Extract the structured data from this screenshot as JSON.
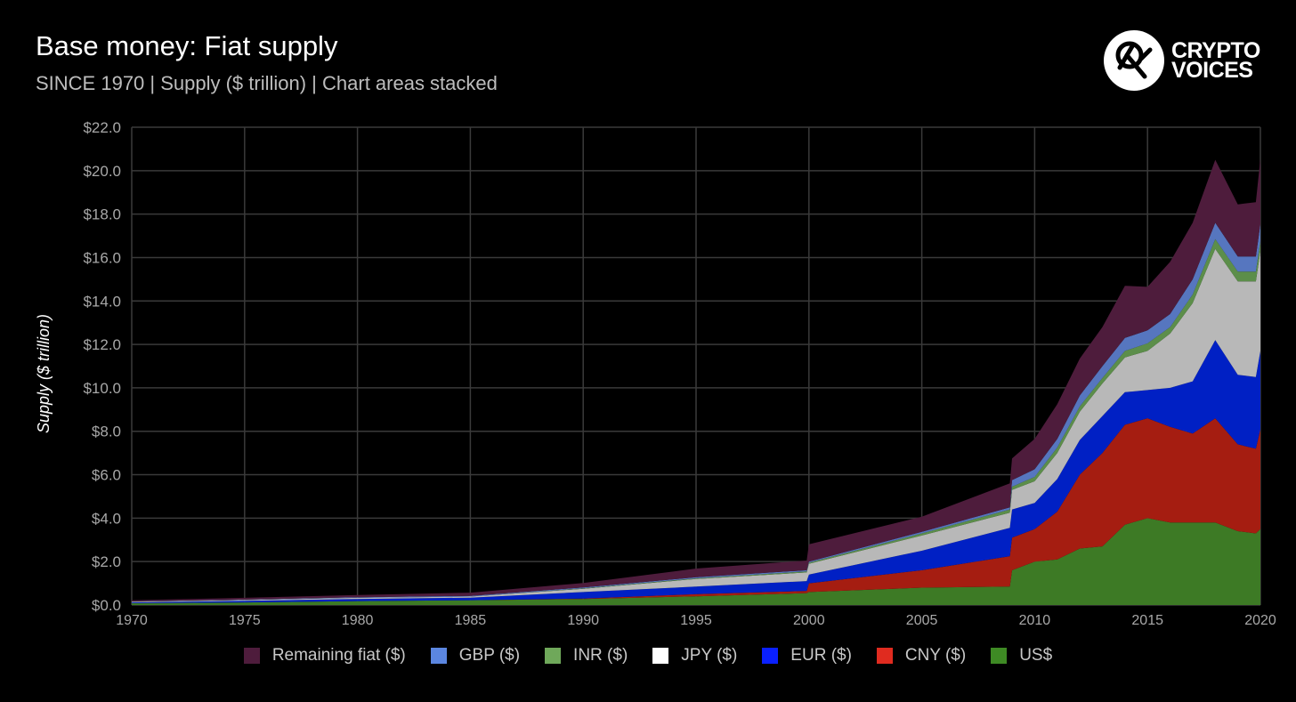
{
  "header": {
    "title": "Base money: Fiat supply",
    "subtitle": "SINCE 1970 | Supply ($ trillion) | Chart areas stacked"
  },
  "logo": {
    "line1": "CRYPTO",
    "line2": "VOICES",
    "icon": "crypto-voices-pickaxe-icon"
  },
  "chart_data": {
    "type": "area",
    "stacked": true,
    "title": "Base money: Fiat supply",
    "subtitle": "SINCE 1970 | Supply ($ trillion) | Chart areas stacked",
    "xlabel": "",
    "ylabel": "Supply ($ trillion)",
    "xlim": [
      1970,
      2020
    ],
    "ylim": [
      0,
      22
    ],
    "x_ticks": [
      "1970",
      "1975",
      "1980",
      "1985",
      "1990",
      "1995",
      "2000",
      "2005",
      "2010",
      "2015",
      "2020"
    ],
    "y_ticks": [
      "$0.0",
      "$2.0",
      "$4.0",
      "$6.0",
      "$8.0",
      "$10.0",
      "$12.0",
      "$14.0",
      "$16.0",
      "$18.0",
      "$20.0",
      "$22.0"
    ],
    "grid": true,
    "legend_position": "bottom",
    "x": [
      1970,
      1975,
      1980,
      1985,
      1990,
      1995,
      1999.9,
      2000,
      2005,
      2008.9,
      2009,
      2010,
      2011,
      2012,
      2013,
      2014,
      2015,
      2016,
      2017,
      2018,
      2019,
      2019.8,
      2020
    ],
    "series": [
      {
        "name": "US$",
        "color": "#3d7a25",
        "values": [
          0.08,
          0.12,
          0.18,
          0.22,
          0.28,
          0.4,
          0.55,
          0.6,
          0.8,
          0.85,
          1.6,
          2.0,
          2.1,
          2.6,
          2.7,
          3.7,
          4.0,
          3.8,
          3.8,
          3.8,
          3.4,
          3.3,
          3.5
        ]
      },
      {
        "name": "CNY ($)",
        "color": "#a51d11",
        "values": [
          0.0,
          0.0,
          0.0,
          0.0,
          0.02,
          0.1,
          0.1,
          0.4,
          0.8,
          1.4,
          1.5,
          1.5,
          2.2,
          3.4,
          4.3,
          4.6,
          4.6,
          4.4,
          4.1,
          4.8,
          4.0,
          3.9,
          4.6
        ]
      },
      {
        "name": "EUR ($)",
        "color": "#0020c4",
        "values": [
          0.04,
          0.07,
          0.1,
          0.12,
          0.3,
          0.35,
          0.45,
          0.4,
          0.9,
          1.3,
          1.3,
          1.2,
          1.5,
          1.6,
          1.7,
          1.5,
          1.3,
          1.8,
          2.4,
          3.6,
          3.2,
          3.3,
          3.6
        ]
      },
      {
        "name": "JPY ($)",
        "color": "#b8b8b8",
        "values": [
          0.03,
          0.04,
          0.05,
          0.05,
          0.15,
          0.35,
          0.4,
          0.5,
          0.7,
          0.7,
          0.9,
          1.0,
          1.2,
          1.3,
          1.5,
          1.6,
          1.8,
          2.5,
          3.6,
          4.2,
          4.3,
          4.4,
          4.6
        ]
      },
      {
        "name": "INR ($)",
        "color": "#5c8e4a",
        "values": [
          0.0,
          0.0,
          0.0,
          0.0,
          0.02,
          0.03,
          0.05,
          0.05,
          0.1,
          0.15,
          0.15,
          0.2,
          0.25,
          0.25,
          0.25,
          0.3,
          0.35,
          0.3,
          0.4,
          0.45,
          0.45,
          0.45,
          0.45
        ]
      },
      {
        "name": "GBP ($)",
        "color": "#5676bf",
        "values": [
          0.02,
          0.02,
          0.03,
          0.03,
          0.04,
          0.05,
          0.05,
          0.05,
          0.07,
          0.1,
          0.3,
          0.35,
          0.4,
          0.5,
          0.55,
          0.6,
          0.6,
          0.6,
          0.7,
          0.75,
          0.7,
          0.7,
          0.8
        ]
      },
      {
        "name": "Remaining fiat ($)",
        "color": "#4e1c3c",
        "values": [
          0.05,
          0.08,
          0.1,
          0.15,
          0.2,
          0.4,
          0.45,
          0.8,
          0.7,
          1.1,
          1.0,
          1.4,
          1.6,
          1.7,
          1.8,
          2.4,
          2.0,
          2.4,
          2.6,
          2.9,
          2.4,
          2.5,
          3.0
        ]
      }
    ]
  }
}
